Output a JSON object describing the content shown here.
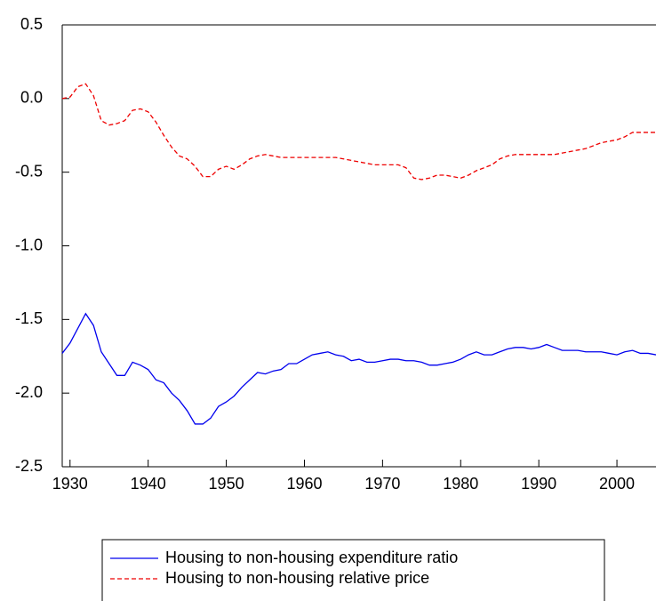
{
  "chart_data": {
    "type": "line",
    "x": [
      1929,
      1930,
      1931,
      1932,
      1933,
      1934,
      1935,
      1936,
      1937,
      1938,
      1939,
      1940,
      1941,
      1942,
      1943,
      1944,
      1945,
      1946,
      1947,
      1948,
      1949,
      1950,
      1951,
      1952,
      1953,
      1954,
      1955,
      1956,
      1957,
      1958,
      1959,
      1960,
      1961,
      1962,
      1963,
      1964,
      1965,
      1966,
      1967,
      1968,
      1969,
      1970,
      1971,
      1972,
      1973,
      1974,
      1975,
      1976,
      1977,
      1978,
      1979,
      1980,
      1981,
      1982,
      1983,
      1984,
      1985,
      1986,
      1987,
      1988,
      1989,
      1990,
      1991,
      1992,
      1993,
      1994,
      1995,
      1996,
      1997,
      1998,
      1999,
      2000,
      2001,
      2002,
      2003,
      2004,
      2005
    ],
    "series": [
      {
        "name": "Housing to non-housing expenditure ratio",
        "color": "#0000ee",
        "style": "solid",
        "values": [
          -1.73,
          -1.66,
          -1.56,
          -1.46,
          -1.54,
          -1.72,
          -1.8,
          -1.88,
          -1.88,
          -1.79,
          -1.81,
          -1.84,
          -1.91,
          -1.93,
          -2.0,
          -2.05,
          -2.12,
          -2.21,
          -2.21,
          -2.17,
          -2.09,
          -2.06,
          -2.02,
          -1.96,
          -1.91,
          -1.86,
          -1.87,
          -1.85,
          -1.84,
          -1.8,
          -1.8,
          -1.77,
          -1.74,
          -1.73,
          -1.72,
          -1.74,
          -1.75,
          -1.78,
          -1.77,
          -1.79,
          -1.79,
          -1.78,
          -1.77,
          -1.77,
          -1.78,
          -1.78,
          -1.79,
          -1.81,
          -1.81,
          -1.8,
          -1.79,
          -1.77,
          -1.74,
          -1.72,
          -1.74,
          -1.74,
          -1.72,
          -1.7,
          -1.69,
          -1.69,
          -1.7,
          -1.69,
          -1.67,
          -1.69,
          -1.71,
          -1.71,
          -1.71,
          -1.72,
          -1.72,
          -1.72,
          -1.73,
          -1.74,
          -1.72,
          -1.71,
          -1.73,
          -1.73,
          -1.74
        ]
      },
      {
        "name": "Housing to non-housing relative price",
        "color": "#ee0000",
        "style": "dashed",
        "values": [
          0.0,
          0.01,
          0.08,
          0.1,
          0.02,
          -0.15,
          -0.18,
          -0.17,
          -0.15,
          -0.08,
          -0.07,
          -0.09,
          -0.16,
          -0.25,
          -0.33,
          -0.39,
          -0.41,
          -0.46,
          -0.53,
          -0.53,
          -0.48,
          -0.46,
          -0.48,
          -0.45,
          -0.41,
          -0.39,
          -0.38,
          -0.39,
          -0.4,
          -0.4,
          -0.4,
          -0.4,
          -0.4,
          -0.4,
          -0.4,
          -0.4,
          -0.41,
          -0.42,
          -0.43,
          -0.44,
          -0.45,
          -0.45,
          -0.45,
          -0.45,
          -0.47,
          -0.54,
          -0.55,
          -0.54,
          -0.52,
          -0.52,
          -0.53,
          -0.54,
          -0.52,
          -0.49,
          -0.47,
          -0.45,
          -0.41,
          -0.39,
          -0.38,
          -0.38,
          -0.38,
          -0.38,
          -0.38,
          -0.38,
          -0.37,
          -0.36,
          -0.35,
          -0.34,
          -0.32,
          -0.3,
          -0.29,
          -0.28,
          -0.26,
          -0.23,
          -0.23,
          -0.23,
          -0.23
        ]
      }
    ],
    "xlim": [
      1929,
      2005
    ],
    "xticks": [
      1930,
      1940,
      1950,
      1960,
      1970,
      1980,
      1990,
      2000
    ],
    "ylim": [
      -2.5,
      0.5
    ],
    "yticks": [
      -2.5,
      {
        "value": -2,
        "label": "-2.0"
      },
      -1.5,
      {
        "value": -1,
        "label": "-1.0"
      },
      -0.5,
      {
        "value": 0,
        "label": "0.0"
      },
      0.5
    ],
    "grid": false,
    "legend": "bottom"
  }
}
